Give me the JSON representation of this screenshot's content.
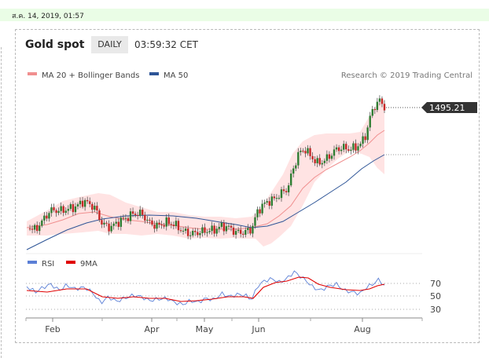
{
  "header": {
    "datetime": "ส.ค. 14, 2019, 01:57",
    "instrument": "Gold spot",
    "period": "DAILY",
    "time": "03:59:32 CET"
  },
  "chart_data": {
    "type": "candlestick",
    "copyright": "Research © 2019 Trading Central",
    "last_price_label": "1495.21",
    "legend": [
      {
        "name": "MA 20 + Bollinger Bands",
        "color": "#f08f8f"
      },
      {
        "name": "MA 50",
        "color": "#2e5597"
      }
    ],
    "x_ticks": [
      "Feb",
      "Apr",
      "May",
      "Jun",
      "Aug"
    ],
    "rsi": {
      "legend": [
        {
          "name": "RSI",
          "color": "#5b7fd6"
        },
        {
          "name": "9MA",
          "color": "#e00000"
        }
      ],
      "levels": [
        70,
        50,
        30
      ],
      "level_labels": [
        "70",
        "50",
        "30"
      ]
    },
    "colors": {
      "up": "#2e7d32",
      "down": "#c62828",
      "band": "#ffe3e3",
      "ma20": "#f08f8f",
      "ma50": "#2e5597",
      "rsi": "#5b7fd6",
      "rsi_ma": "#e00000",
      "price_box": "#333333"
    }
  }
}
